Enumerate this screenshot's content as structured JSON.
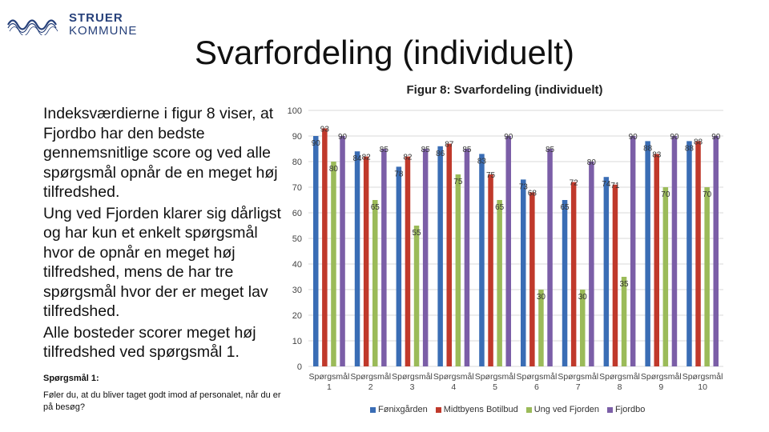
{
  "logo": {
    "line1": "STRUER",
    "line2": "KOMMUNE"
  },
  "slide": {
    "title": "Svarfordeling (individuelt)"
  },
  "text": {
    "p1": "Indeksværdierne i figur 8 viser, at Fjordbo har den bedste gennemsnitlige score og ved alle spørgsmål opnår de en meget høj tilfredshed.",
    "p2": "Ung ved Fjorden klarer sig dårligst og har kun et enkelt spørgsmål hvor de opnår en meget høj tilfredshed, mens de har tre spørgsmål hvor der er meget lav tilfredshed.",
    "p3": "Alle bosteder scorer meget høj tilfredshed ved spørgsmål 1.",
    "q_title": "Spørgsmål 1:",
    "q_text": "Føler du, at du bliver taget godt imod af personalet, når du er på besøg?"
  },
  "chart_data": {
    "type": "bar",
    "title": "Figur 8: Svarfordeling (individuelt)",
    "categories": [
      "Spørgsmål 1",
      "Spørgsmål 2",
      "Spørgsmål 3",
      "Spørgsmål 4",
      "Spørgsmål 5",
      "Spørgsmål 6",
      "Spørgsmål 7",
      "Spørgsmål 8",
      "Spørgsmål 9",
      "Spørgsmål 10"
    ],
    "category_lines": [
      [
        "Spørgsmål",
        "1"
      ],
      [
        "Spørgsmål",
        "2"
      ],
      [
        "Spørgsmål",
        "3"
      ],
      [
        "Spørgsmål",
        "4"
      ],
      [
        "Spørgsmål",
        "5"
      ],
      [
        "Spørgsmål",
        "6"
      ],
      [
        "Spørgsmål",
        "7"
      ],
      [
        "Spørgsmål",
        "8"
      ],
      [
        "Spørgsmål",
        "9"
      ],
      [
        "Spørgsmål",
        "10"
      ]
    ],
    "series": [
      {
        "name": "Fønixgården",
        "color": "#3a6db5",
        "values": [
          90,
          84,
          78,
          86,
          83,
          73,
          65,
          74,
          88,
          88
        ]
      },
      {
        "name": "Midtbyens Botilbud",
        "color": "#c0392b",
        "values": [
          93,
          82,
          82,
          87,
          75,
          68,
          72,
          71,
          83,
          88
        ]
      },
      {
        "name": "Ung ved Fjorden",
        "color": "#9bbb59",
        "values": [
          80,
          65,
          55,
          75,
          65,
          30,
          30,
          35,
          70,
          70
        ]
      },
      {
        "name": "Fjordbo",
        "color": "#7b5ea7",
        "values": [
          90,
          85,
          85,
          85,
          90,
          85,
          80,
          90,
          90,
          90
        ]
      }
    ],
    "ylim": [
      0,
      100
    ],
    "yticks": [
      0,
      10,
      20,
      30,
      40,
      50,
      60,
      70,
      80,
      90,
      100
    ],
    "grid": true,
    "legend_position": "bottom",
    "data_labels": true
  }
}
